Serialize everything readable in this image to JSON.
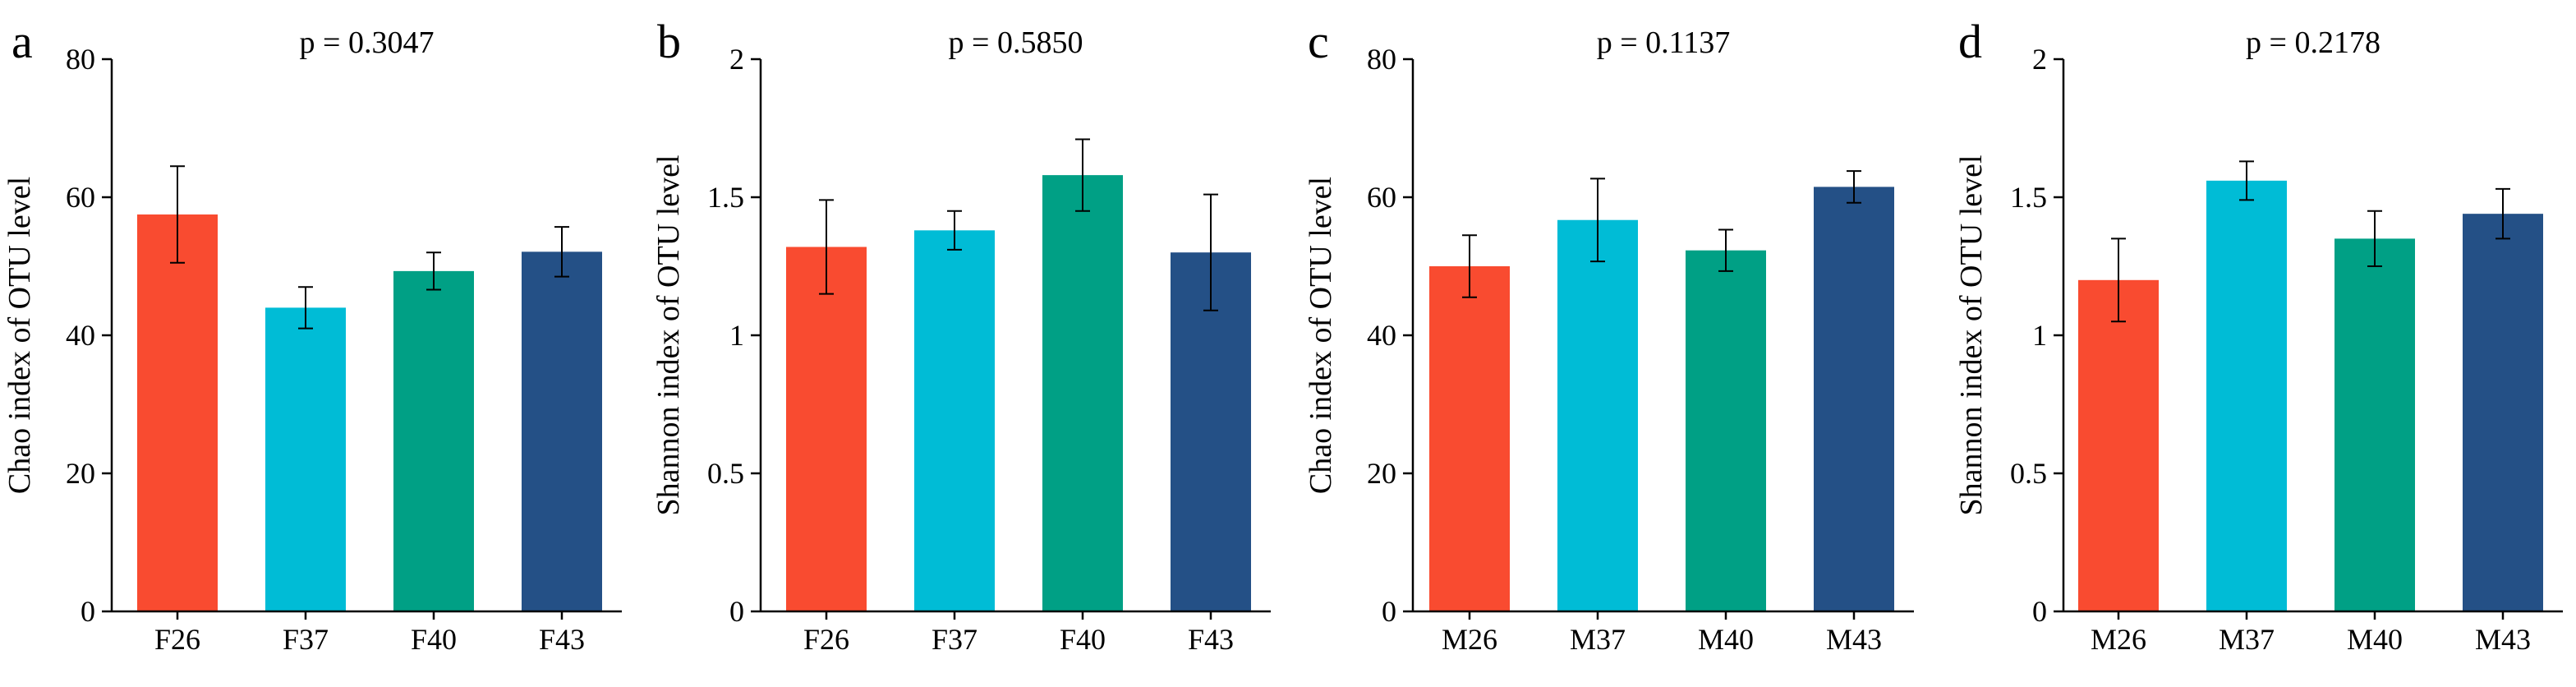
{
  "chart_data": [
    {
      "type": "bar",
      "panel": "a",
      "title": "p = 0.3047",
      "ylabel": "Chao index of OTU level",
      "xlabel": "",
      "categories": [
        "F26",
        "F37",
        "F40",
        "F43"
      ],
      "values": [
        57.5,
        44.0,
        49.3,
        52.1
      ],
      "errors": [
        7.0,
        3.0,
        2.7,
        3.6
      ],
      "colors": [
        "#f94b30",
        "#00bcd6",
        "#00a085",
        "#245086"
      ],
      "ylim": [
        0,
        80
      ],
      "yticks": [
        0,
        20,
        40,
        60,
        80
      ],
      "ytick_labels": [
        "0",
        "20",
        "40",
        "60",
        "80"
      ]
    },
    {
      "type": "bar",
      "panel": "b",
      "title": "p = 0.5850",
      "ylabel": "Shannon index of OTU level",
      "xlabel": "",
      "categories": [
        "F26",
        "F37",
        "F40",
        "F43"
      ],
      "values": [
        1.32,
        1.38,
        1.58,
        1.3
      ],
      "errors": [
        0.17,
        0.07,
        0.13,
        0.21
      ],
      "colors": [
        "#f94b30",
        "#00bcd6",
        "#00a085",
        "#245086"
      ],
      "ylim": [
        0,
        2
      ],
      "yticks": [
        0,
        0.5,
        1,
        1.5,
        2
      ],
      "ytick_labels": [
        "0",
        "0.5",
        "1",
        "1.5",
        "2"
      ]
    },
    {
      "type": "bar",
      "panel": "c",
      "title": "p = 0.1137",
      "ylabel": "Chao index of OTU level",
      "xlabel": "",
      "categories": [
        "M26",
        "M37",
        "M40",
        "M43"
      ],
      "values": [
        50.0,
        56.7,
        52.3,
        61.5
      ],
      "errors": [
        4.5,
        6.0,
        3.0,
        2.3
      ],
      "colors": [
        "#f94b30",
        "#00bcd6",
        "#00a085",
        "#245086"
      ],
      "ylim": [
        0,
        80
      ],
      "yticks": [
        0,
        20,
        40,
        60,
        80
      ],
      "ytick_labels": [
        "0",
        "20",
        "40",
        "60",
        "80"
      ]
    },
    {
      "type": "bar",
      "panel": "d",
      "title": "p = 0.2178",
      "ylabel": "Shannon index of OTU level",
      "xlabel": "",
      "categories": [
        "M26",
        "M37",
        "M40",
        "M43"
      ],
      "values": [
        1.2,
        1.56,
        1.35,
        1.44
      ],
      "errors": [
        0.15,
        0.07,
        0.1,
        0.09
      ],
      "colors": [
        "#f94b30",
        "#00bcd6",
        "#00a085",
        "#245086"
      ],
      "ylim": [
        0,
        2
      ],
      "yticks": [
        0,
        0.5,
        1,
        1.5,
        2
      ],
      "ytick_labels": [
        "0",
        "0.5",
        "1",
        "1.5",
        "2"
      ]
    }
  ]
}
